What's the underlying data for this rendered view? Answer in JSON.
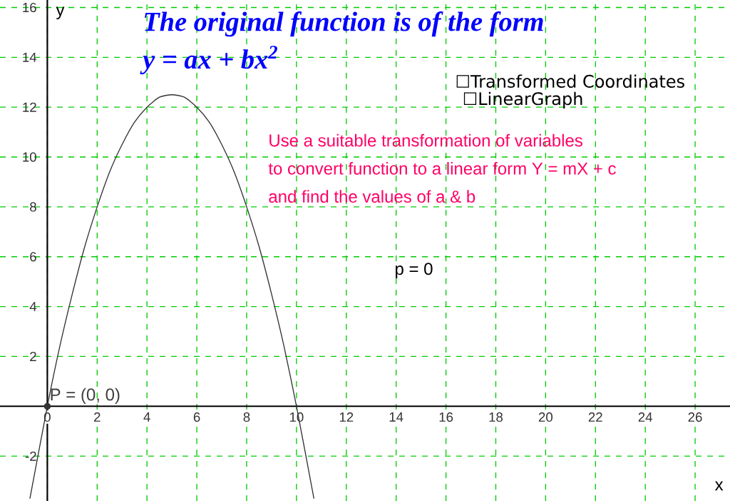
{
  "chart_data": {
    "type": "line",
    "title": "The original function is of the form",
    "subtitle": "y = ax + bx$^{2}$",
    "xlabel": "x",
    "ylabel": "y",
    "xlim": [
      -1.9,
      27.4
    ],
    "ylim": [
      -3.8,
      16.3
    ],
    "xticks": [
      0,
      2,
      4,
      6,
      8,
      10,
      12,
      14,
      16,
      18,
      20,
      22,
      24,
      26
    ],
    "yticks": [
      -2,
      2,
      4,
      6,
      8,
      10,
      12,
      14,
      16
    ],
    "grid": true,
    "series": [
      {
        "color": "#333333",
        "marker": "none",
        "x": [
          -0.7,
          0,
          0.5,
          1,
          1.5,
          2,
          2.5,
          3,
          3.5,
          4,
          4.5,
          5,
          5.5,
          6,
          6.5,
          7,
          7.5,
          8,
          8.5,
          9,
          9.5,
          10,
          10.7
        ],
        "values": [
          -3.7,
          0,
          2.4,
          4.5,
          6.4,
          8,
          9.4,
          10.5,
          11.4,
          12,
          12.4,
          12.5,
          12.4,
          12,
          11.4,
          10.5,
          9.4,
          8,
          6.4,
          4.5,
          2.4,
          0,
          -3.7
        ]
      },
      {
        "type": "scatter",
        "color": "#333333",
        "marker": "circle",
        "x": [
          0
        ],
        "values": [
          0
        ]
      }
    ],
    "annotations": [
      {
        "text": "P = (0, 0)",
        "x": 0,
        "y": 0
      },
      "☐Transformed Coordinates",
      "☐LinearGraph",
      "Use a suitable transformation of variables",
      "to convert function to a linear form Y = mX + c",
      "and find the values of a & b",
      "p = 0"
    ]
  }
}
